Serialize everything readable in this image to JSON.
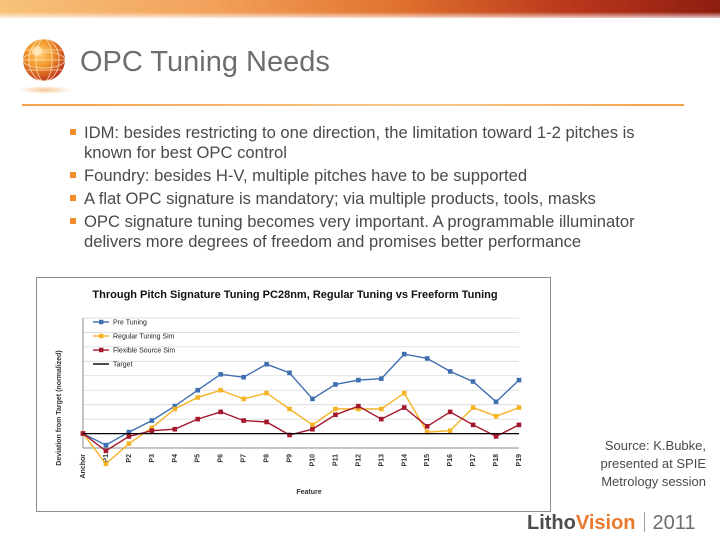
{
  "slide": {
    "title": "OPC Tuning Needs",
    "bullets": [
      "IDM: besides restricting to one direction, the limitation toward 1-2 pitches is known for best OPC control",
      "Foundry: besides H-V, multiple pitches have to be supported",
      "A flat OPC signature is mandatory; via multiple products, tools, masks",
      "OPC signature tuning becomes very important. A programmable illuminator delivers more degrees of freedom and promises better performance"
    ],
    "source_lines": [
      "Source: K.Bubke,",
      "presented at SPIE",
      "Metrology session"
    ],
    "brand": {
      "part1": "Litho",
      "part2": "Vision",
      "year": "2011"
    },
    "colors": {
      "accent": "#f28c28",
      "title": "#6d6e71",
      "body_text": "#4a4a4a"
    },
    "logo_icon": "orange-globe-icon"
  },
  "chart_data": {
    "type": "line",
    "title": "Through Pitch Signature Tuning PC28nm, Regular Tuning vs Freeform Tuning",
    "xlabel": "Feature",
    "ylabel": "Deviation from Target (normalized)",
    "categories": [
      "Anchor",
      "P1",
      "P2",
      "P3",
      "P4",
      "P5",
      "P6",
      "P7",
      "P8",
      "P9",
      "P10",
      "P11",
      "P12",
      "P13",
      "P14",
      "P15",
      "P16",
      "P17",
      "P18",
      "P19"
    ],
    "ylim": [
      -0.5,
      4.0
    ],
    "y_tick_labels_shown": false,
    "grid": "horizontal",
    "legend_position": "top-left",
    "series": [
      {
        "name": "Pre Tuning",
        "color": "#3f6fb0",
        "marker": "square",
        "values": [
          0.0,
          -0.4,
          0.05,
          0.45,
          0.95,
          1.5,
          2.05,
          1.95,
          2.4,
          2.1,
          1.2,
          1.7,
          1.85,
          1.9,
          2.75,
          2.6,
          2.15,
          1.8,
          1.1,
          1.85
        ]
      },
      {
        "name": "Regular Tuning Sim",
        "color": "#f5b326",
        "marker": "square",
        "values": [
          0.0,
          -1.05,
          -0.35,
          0.2,
          0.85,
          1.25,
          1.5,
          1.2,
          1.4,
          0.85,
          0.3,
          0.85,
          0.85,
          0.85,
          1.4,
          0.05,
          0.1,
          0.9,
          0.6,
          0.9
        ]
      },
      {
        "name": "Flexible Source Sim",
        "color": "#a3182c",
        "marker": "square",
        "values": [
          0.0,
          -0.6,
          -0.1,
          0.1,
          0.15,
          0.5,
          0.75,
          0.45,
          0.4,
          -0.05,
          0.15,
          0.65,
          0.95,
          0.5,
          0.9,
          0.25,
          0.75,
          0.3,
          -0.1,
          0.3
        ]
      },
      {
        "name": "Target",
        "color": "#000000",
        "marker": "none",
        "values": [
          0,
          0,
          0,
          0,
          0,
          0,
          0,
          0,
          0,
          0,
          0,
          0,
          0,
          0,
          0,
          0,
          0,
          0,
          0,
          0
        ]
      }
    ]
  }
}
